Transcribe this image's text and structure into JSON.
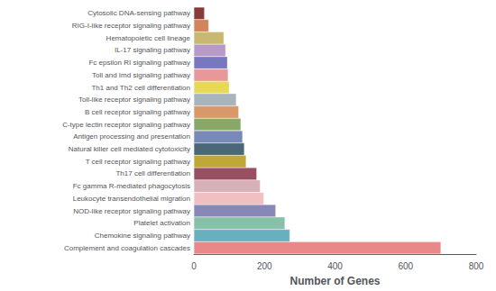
{
  "chart_data": {
    "type": "bar",
    "orientation": "horizontal",
    "categories": [
      "Cytosolic DNA-sensing pathway",
      "RIG-I-like receptor signaling pathway",
      "Hematopoietic cell lineage",
      "IL-17 signaling pathway",
      "Fc epsilon RI signaling pathway",
      "Toll and Imd signaling pathway",
      "Th1 and Th2 cell differentiation",
      "Toll-like receptor signaling pathway",
      "B cell receptor signaling pathway",
      "C-type lectin receptor signaling pathway",
      "Antigen processing and presentation",
      "Natural killer cell mediated cytotoxicity",
      "T cell receptor signaling pathway",
      "Th17 cell differentiation",
      "Fc gamma R-mediated phagocytosis",
      "Leukocyte transendothelial migration",
      "NOD-like receptor signaling pathway",
      "Platelet activation",
      "Chemokine signaling pathway",
      "Complement and coagulation cascades"
    ],
    "values": [
      30,
      42,
      85,
      90,
      95,
      97,
      100,
      120,
      127,
      133,
      138,
      143,
      148,
      178,
      188,
      198,
      232,
      258,
      272,
      700
    ],
    "colors": [
      "#8B3A3A",
      "#D2855A",
      "#C8B870",
      "#B89AC8",
      "#7878C0",
      "#E89898",
      "#E8D858",
      "#A8B4BC",
      "#D8986A",
      "#88A868",
      "#7888B8",
      "#4A6878",
      "#C0A838",
      "#985060",
      "#D8B0B8",
      "#F0C0C0",
      "#8888B8",
      "#88C0A8",
      "#68B0C0",
      "#E88888"
    ],
    "xlabel": "Number of Genes",
    "xlim": [
      0,
      800
    ],
    "xticks": [
      0,
      200,
      400,
      600,
      800
    ],
    "grid": false
  }
}
